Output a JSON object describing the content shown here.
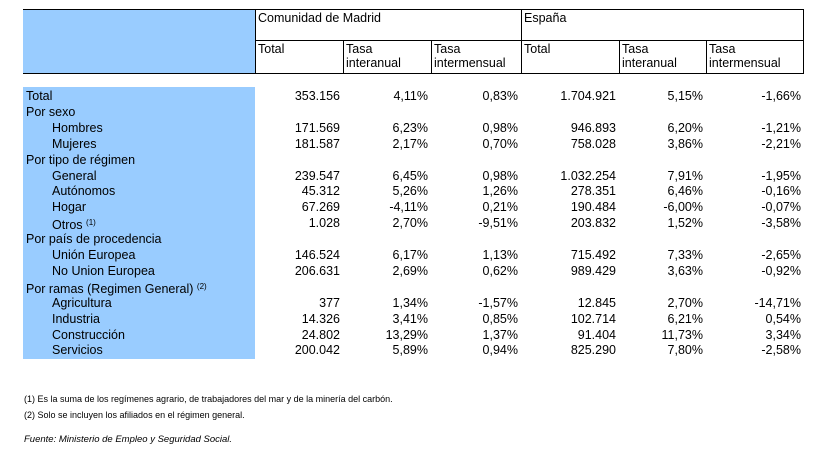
{
  "header": {
    "group_madrid": "Comunidad de Madrid",
    "group_spain": "España",
    "col_total": "Total",
    "col_interanual": [
      "Tasa",
      "interanual"
    ],
    "col_intermensual": [
      "Tasa",
      "intermensual"
    ]
  },
  "rows": [
    {
      "label": "Total",
      "indent": 0,
      "values": [
        "353.156",
        "4,11%",
        "0,83%",
        "1.704.921",
        "5,15%",
        "-1,66%"
      ]
    },
    {
      "label": "Por sexo",
      "indent": 0,
      "values": []
    },
    {
      "label": "Hombres",
      "indent": 1,
      "values": [
        "171.569",
        "6,23%",
        "0,98%",
        "946.893",
        "6,20%",
        "-1,21%"
      ]
    },
    {
      "label": "Mujeres",
      "indent": 1,
      "values": [
        "181.587",
        "2,17%",
        "0,70%",
        "758.028",
        "3,86%",
        "-2,21%"
      ]
    },
    {
      "label": "Por tipo de régimen",
      "indent": 0,
      "values": []
    },
    {
      "label": "General",
      "indent": 1,
      "values": [
        "239.547",
        "6,45%",
        "0,98%",
        "1.032.254",
        "7,91%",
        "-1,95%"
      ]
    },
    {
      "label": "Autónomos",
      "indent": 1,
      "values": [
        "45.312",
        "5,26%",
        "1,26%",
        "278.351",
        "6,46%",
        "-0,16%"
      ]
    },
    {
      "label": "Hogar",
      "indent": 1,
      "values": [
        "67.269",
        "-4,11%",
        "0,21%",
        "190.484",
        "-6,00%",
        "-0,07%"
      ]
    },
    {
      "label": "Otros",
      "sup": "(1)",
      "indent": 1,
      "values": [
        "1.028",
        "2,70%",
        "-9,51%",
        "203.832",
        "1,52%",
        "-3,58%"
      ]
    },
    {
      "label": "Por país de procedencia",
      "indent": 0,
      "values": []
    },
    {
      "label": "Unión Europea",
      "indent": 1,
      "values": [
        "146.524",
        "6,17%",
        "1,13%",
        "715.492",
        "7,33%",
        "-2,65%"
      ]
    },
    {
      "label": "No Union Europea",
      "indent": 1,
      "values": [
        "206.631",
        "2,69%",
        "0,62%",
        "989.429",
        "3,63%",
        "-0,92%"
      ]
    },
    {
      "label": "Por ramas (Regimen General)",
      "sup": "(2)",
      "indent": 0,
      "values": []
    },
    {
      "label": "Agricultura",
      "indent": 1,
      "values": [
        "377",
        "1,34%",
        "-1,57%",
        "12.845",
        "2,70%",
        "-14,71%"
      ]
    },
    {
      "label": "Industria",
      "indent": 1,
      "values": [
        "14.326",
        "3,41%",
        "0,85%",
        "102.714",
        "6,21%",
        "0,54%"
      ]
    },
    {
      "label": "Construcción",
      "indent": 1,
      "values": [
        "24.802",
        "13,29%",
        "1,37%",
        "91.404",
        "11,73%",
        "3,34%"
      ]
    },
    {
      "label": "Servicios",
      "indent": 1,
      "values": [
        "200.042",
        "5,89%",
        "0,94%",
        "825.290",
        "7,80%",
        "-2,58%"
      ]
    }
  ],
  "notes": [
    "(1) Es la suma de los regímenes  agrario, de trabajadores del mar y de la minería del carbón.",
    "(2) Solo se incluyen los afiliados en el régimen general."
  ],
  "source": "Fuente: Ministerio de Empleo y Seguridad Social.",
  "colors": {
    "label_fill": "#99ccff",
    "rule": "#000000"
  }
}
